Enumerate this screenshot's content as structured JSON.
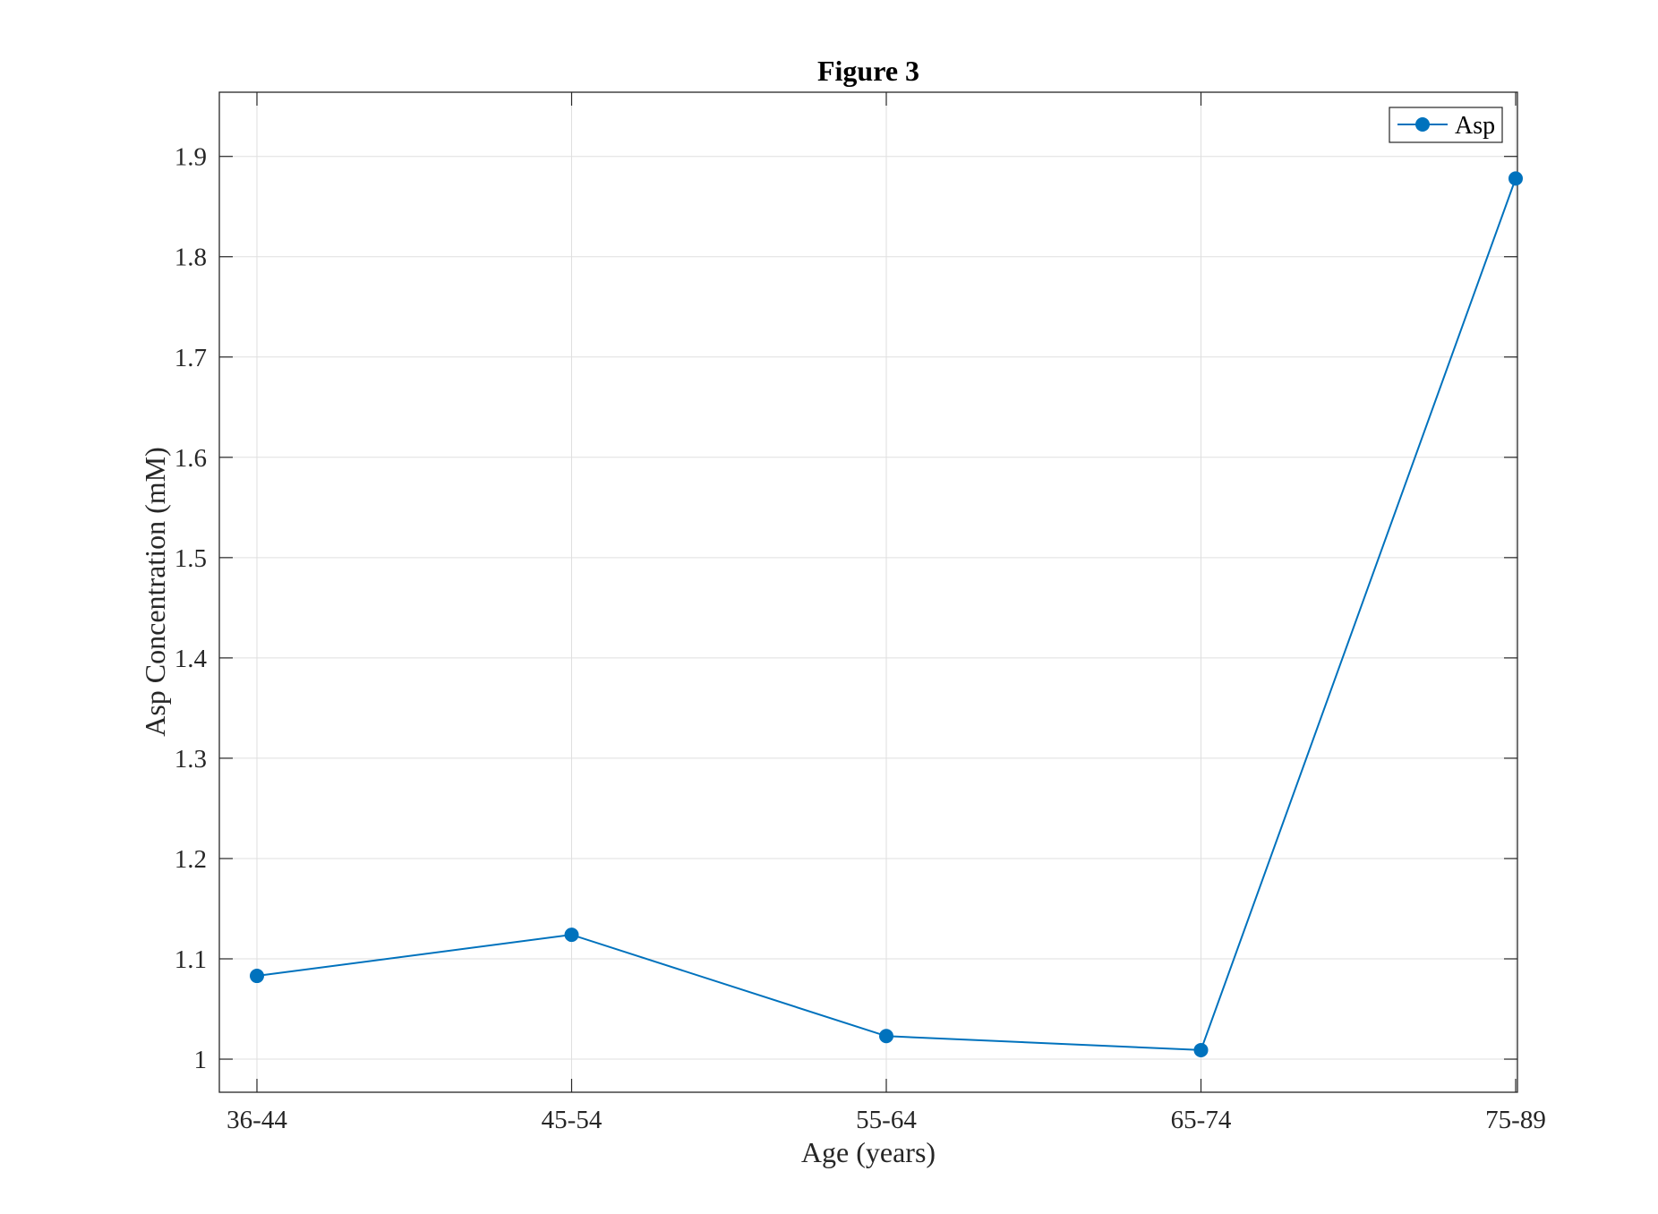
{
  "chart_data": {
    "type": "line",
    "title": "Figure 3",
    "xlabel": "Age (years)",
    "ylabel": "Asp Concentration (mM)",
    "categories": [
      "36-44",
      "45-54",
      "55-64",
      "65-74",
      "75-89"
    ],
    "series": [
      {
        "name": "Asp",
        "values": [
          1.083,
          1.124,
          1.023,
          1.009,
          1.878
        ],
        "color": "#0072BD",
        "marker": "circle"
      }
    ],
    "ylim": [
      0.967,
      1.964
    ],
    "yticks": [
      1,
      1.1,
      1.2,
      1.3,
      1.4,
      1.5,
      1.6,
      1.7,
      1.8,
      1.9
    ],
    "ytick_labels": [
      "1",
      "1.1",
      "1.2",
      "1.3",
      "1.4",
      "1.5",
      "1.6",
      "1.7",
      "1.8",
      "1.9"
    ],
    "grid": true,
    "legend_position": "top-right"
  }
}
